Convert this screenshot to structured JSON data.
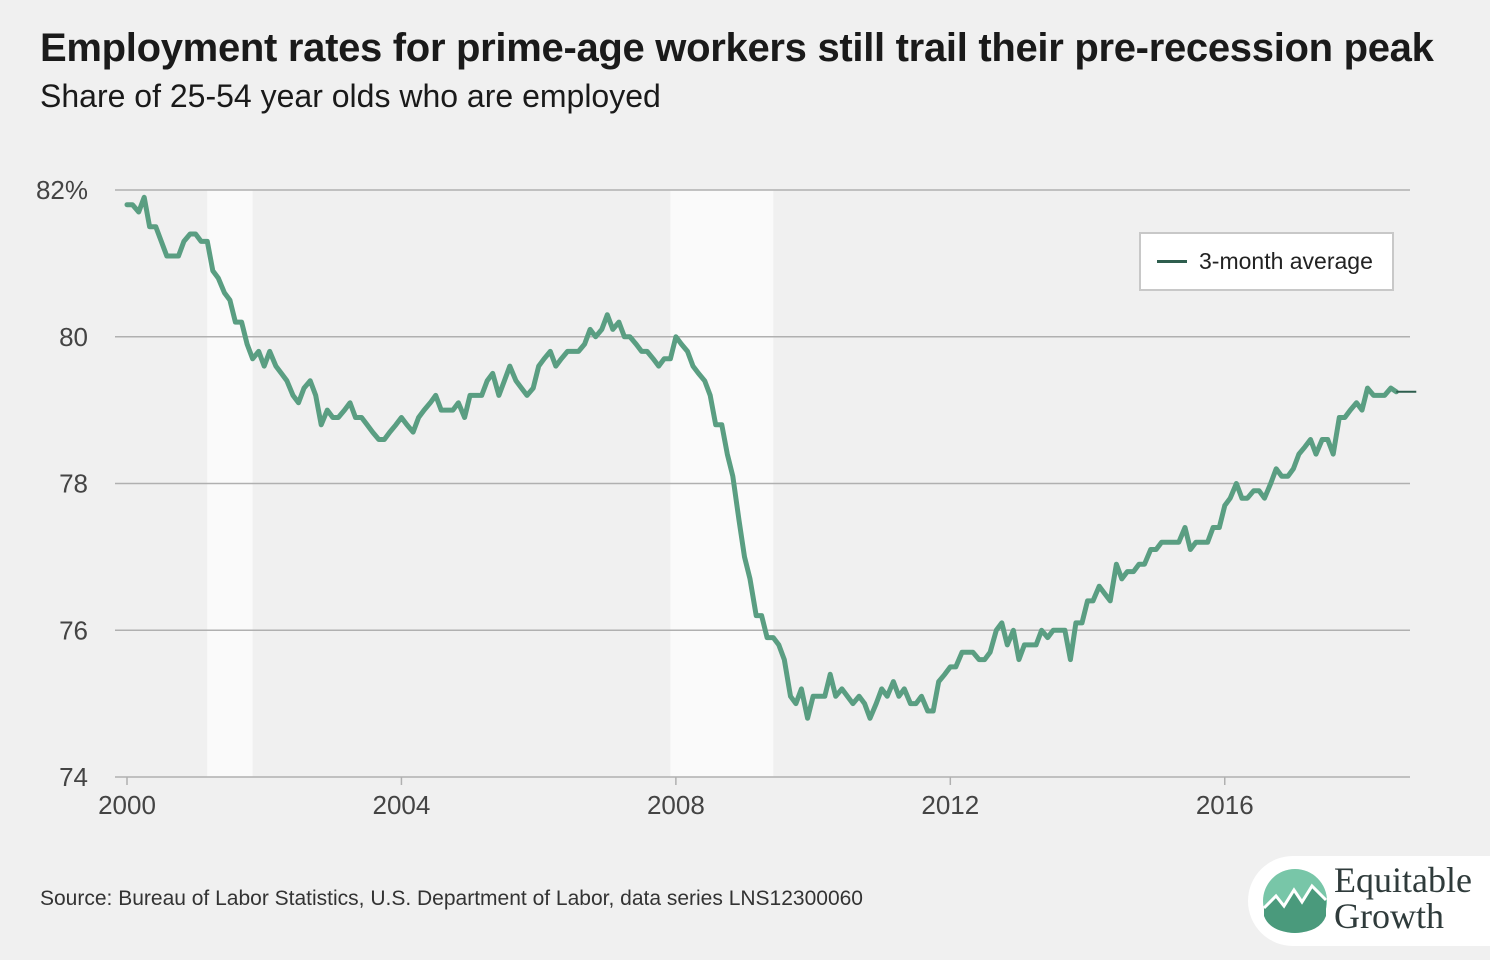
{
  "header": {
    "title": "Employment rates for prime-age workers still trail their pre-recession peak",
    "subtitle": "Share of 25-54 year olds who are employed"
  },
  "legend": {
    "label": "3-month average"
  },
  "source": "Source: Bureau of Labor Statistics, U.S. Department of Labor, data series LNS12300060",
  "logo": {
    "line1": "Equitable",
    "line2": "Growth"
  },
  "colors": {
    "line": "#5a9e82",
    "legend_line": "#2e5e4e",
    "recession_band": "#fafafa",
    "grid": "#b0b0b0",
    "background": "#f0f0f0"
  },
  "chart_data": {
    "type": "line",
    "title": "Employment rates for prime-age workers still trail their pre-recession peak",
    "subtitle": "Share of 25-54 year olds who are employed",
    "xlabel": "",
    "ylabel": "",
    "xlim": [
      2000,
      2018.7
    ],
    "ylim": [
      74,
      82
    ],
    "x_ticks": [
      2000,
      2004,
      2008,
      2012,
      2016
    ],
    "x_tick_labels": [
      "2000",
      "2004",
      "2008",
      "2012",
      "2016"
    ],
    "y_ticks": [
      74,
      76,
      78,
      80,
      82
    ],
    "y_tick_labels": [
      "74",
      "76",
      "78",
      "80",
      "82%"
    ],
    "grid": "horizontal",
    "legend_position": "top-right",
    "shaded_periods": [
      [
        2001.17,
        2001.83
      ],
      [
        2007.92,
        2009.42
      ]
    ],
    "series": [
      {
        "name": "3-month average",
        "x": [
          2000.0,
          2000.08,
          2000.17,
          2000.25,
          2000.33,
          2000.42,
          2000.5,
          2000.58,
          2000.67,
          2000.75,
          2000.83,
          2000.92,
          2001.0,
          2001.08,
          2001.17,
          2001.25,
          2001.33,
          2001.42,
          2001.5,
          2001.58,
          2001.67,
          2001.75,
          2001.83,
          2001.92,
          2002.0,
          2002.08,
          2002.17,
          2002.25,
          2002.33,
          2002.42,
          2002.5,
          2002.58,
          2002.67,
          2002.75,
          2002.83,
          2002.92,
          2003.0,
          2003.08,
          2003.17,
          2003.25,
          2003.33,
          2003.42,
          2003.5,
          2003.58,
          2003.67,
          2003.75,
          2003.83,
          2003.92,
          2004.0,
          2004.08,
          2004.17,
          2004.25,
          2004.33,
          2004.42,
          2004.5,
          2004.58,
          2004.67,
          2004.75,
          2004.83,
          2004.92,
          2005.0,
          2005.08,
          2005.17,
          2005.25,
          2005.33,
          2005.42,
          2005.5,
          2005.58,
          2005.67,
          2005.75,
          2005.83,
          2005.92,
          2006.0,
          2006.08,
          2006.17,
          2006.25,
          2006.33,
          2006.42,
          2006.5,
          2006.58,
          2006.67,
          2006.75,
          2006.83,
          2006.92,
          2007.0,
          2007.08,
          2007.17,
          2007.25,
          2007.33,
          2007.42,
          2007.5,
          2007.58,
          2007.67,
          2007.75,
          2007.83,
          2007.92,
          2008.0,
          2008.08,
          2008.17,
          2008.25,
          2008.33,
          2008.42,
          2008.5,
          2008.58,
          2008.67,
          2008.75,
          2008.83,
          2008.92,
          2009.0,
          2009.08,
          2009.17,
          2009.25,
          2009.33,
          2009.42,
          2009.5,
          2009.58,
          2009.67,
          2009.75,
          2009.83,
          2009.92,
          2010.0,
          2010.08,
          2010.17,
          2010.25,
          2010.33,
          2010.42,
          2010.5,
          2010.58,
          2010.67,
          2010.75,
          2010.83,
          2010.92,
          2011.0,
          2011.08,
          2011.17,
          2011.25,
          2011.33,
          2011.42,
          2011.5,
          2011.58,
          2011.67,
          2011.75,
          2011.83,
          2011.92,
          2012.0,
          2012.08,
          2012.17,
          2012.25,
          2012.33,
          2012.42,
          2012.5,
          2012.58,
          2012.67,
          2012.75,
          2012.83,
          2012.92,
          2013.0,
          2013.08,
          2013.17,
          2013.25,
          2013.33,
          2013.42,
          2013.5,
          2013.58,
          2013.67,
          2013.75,
          2013.83,
          2013.92,
          2014.0,
          2014.08,
          2014.17,
          2014.25,
          2014.33,
          2014.42,
          2014.5,
          2014.58,
          2014.67,
          2014.75,
          2014.83,
          2014.92,
          2015.0,
          2015.08,
          2015.17,
          2015.25,
          2015.33,
          2015.42,
          2015.5,
          2015.58,
          2015.67,
          2015.75,
          2015.83,
          2015.92,
          2016.0,
          2016.08,
          2016.17,
          2016.25,
          2016.33,
          2016.42,
          2016.5,
          2016.58,
          2016.67,
          2016.75,
          2016.83,
          2016.92,
          2017.0,
          2017.08,
          2017.17,
          2017.25,
          2017.33,
          2017.42,
          2017.5,
          2017.58,
          2017.67,
          2017.75,
          2017.83,
          2017.92,
          2018.0,
          2018.08,
          2018.17,
          2018.25,
          2018.33,
          2018.42,
          2018.5
        ],
        "values": [
          81.8,
          81.8,
          81.7,
          81.9,
          81.5,
          81.5,
          81.3,
          81.1,
          81.1,
          81.1,
          81.3,
          81.4,
          81.4,
          81.3,
          81.3,
          80.9,
          80.8,
          80.6,
          80.5,
          80.2,
          80.2,
          79.9,
          79.7,
          79.8,
          79.6,
          79.8,
          79.6,
          79.5,
          79.4,
          79.2,
          79.1,
          79.3,
          79.4,
          79.2,
          78.8,
          79.0,
          78.9,
          78.9,
          79.0,
          79.1,
          78.9,
          78.9,
          78.8,
          78.7,
          78.6,
          78.6,
          78.7,
          78.8,
          78.9,
          78.8,
          78.7,
          78.9,
          79.0,
          79.1,
          79.2,
          79.0,
          79.0,
          79.0,
          79.1,
          78.9,
          79.2,
          79.2,
          79.2,
          79.4,
          79.5,
          79.2,
          79.4,
          79.6,
          79.4,
          79.3,
          79.2,
          79.3,
          79.6,
          79.7,
          79.8,
          79.6,
          79.7,
          79.8,
          79.8,
          79.8,
          79.9,
          80.1,
          80.0,
          80.1,
          80.3,
          80.1,
          80.2,
          80.0,
          80.0,
          79.9,
          79.8,
          79.8,
          79.7,
          79.6,
          79.7,
          79.7,
          80.0,
          79.9,
          79.8,
          79.6,
          79.5,
          79.4,
          79.2,
          78.8,
          78.8,
          78.4,
          78.1,
          77.5,
          77.0,
          76.7,
          76.2,
          76.2,
          75.9,
          75.9,
          75.8,
          75.6,
          75.1,
          75.0,
          75.2,
          74.8,
          75.1,
          75.1,
          75.1,
          75.4,
          75.1,
          75.2,
          75.1,
          75.0,
          75.1,
          75.0,
          74.8,
          75.0,
          75.2,
          75.1,
          75.3,
          75.1,
          75.2,
          75.0,
          75.0,
          75.1,
          74.9,
          74.9,
          75.3,
          75.4,
          75.5,
          75.5,
          75.7,
          75.7,
          75.7,
          75.6,
          75.6,
          75.7,
          76.0,
          76.1,
          75.8,
          76.0,
          75.6,
          75.8,
          75.8,
          75.8,
          76.0,
          75.9,
          76.0,
          76.0,
          76.0,
          75.6,
          76.1,
          76.1,
          76.4,
          76.4,
          76.6,
          76.5,
          76.4,
          76.9,
          76.7,
          76.8,
          76.8,
          76.9,
          76.9,
          77.1,
          77.1,
          77.2,
          77.2,
          77.2,
          77.2,
          77.4,
          77.1,
          77.2,
          77.2,
          77.2,
          77.4,
          77.4,
          77.7,
          77.8,
          78.0,
          77.8,
          77.8,
          77.9,
          77.9,
          77.8,
          78.0,
          78.2,
          78.1,
          78.1,
          78.2,
          78.4,
          78.5,
          78.6,
          78.4,
          78.6,
          78.6,
          78.4,
          78.9,
          78.9,
          79.0,
          79.1,
          79.0,
          79.3,
          79.2,
          79.2,
          79.2,
          79.3,
          79.25
        ]
      }
    ]
  }
}
